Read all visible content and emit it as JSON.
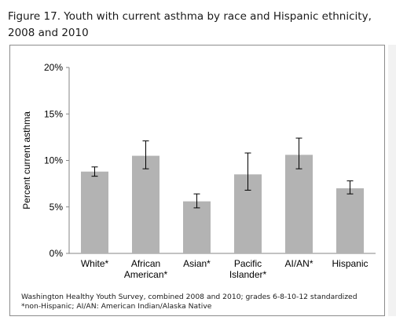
{
  "figure": {
    "title_line1": "Figure 17. Youth with current asthma by race and Hispanic ethnicity,",
    "title_line2": "2008 and 2010",
    "source_line1": "Washington Healthy Youth Survey,  combined 2008 and 2010; grades 6-8-10-12 standardized",
    "source_line2": "*non-Hispanic; AI/AN: American Indian/Alaska Native"
  },
  "chart_data": {
    "type": "bar",
    "title": "Figure 17. Youth with current asthma by race and Hispanic ethnicity, 2008 and 2010",
    "categories": [
      [
        "White*"
      ],
      [
        "African",
        "American*"
      ],
      [
        "Asian*"
      ],
      [
        "Pacific",
        "Islander*"
      ],
      [
        "AI/AN*"
      ],
      [
        "Hispanic"
      ]
    ],
    "values": [
      8.8,
      10.5,
      5.6,
      8.5,
      10.6,
      7.0
    ],
    "error_low": [
      8.3,
      9.1,
      4.9,
      6.8,
      9.1,
      6.4
    ],
    "error_high": [
      9.3,
      12.1,
      6.4,
      10.8,
      12.4,
      7.8
    ],
    "ylabel": "Percent current asthma",
    "xlabel": "",
    "ylim": [
      0,
      20
    ],
    "yticks": [
      0,
      5,
      10,
      15,
      20
    ],
    "ytick_labels": [
      "0%",
      "5%",
      "10%",
      "15%",
      "20%"
    ],
    "grid": false,
    "legend": "none",
    "bar_color": "#b3b3b3",
    "error_bar_color": "#000000"
  }
}
